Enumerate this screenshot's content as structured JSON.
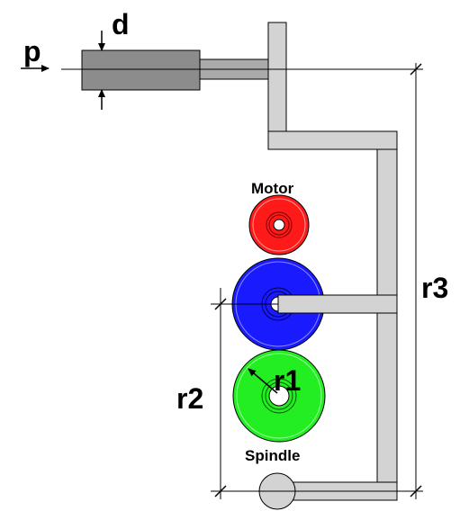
{
  "labels": {
    "p": "p",
    "d": "d",
    "motor": "Motor",
    "spindle": "Spindle",
    "r1": "r1",
    "r2": "r2",
    "r3": "r3"
  },
  "colors": {
    "arm": "#d3d3d3",
    "cylinder": "#8c8c8c",
    "motor_gear": "#ff1a1a",
    "intermediate_gear": "#1a1aff",
    "spindle_gear": "#22ee22",
    "pivot": "#d3d3d3",
    "line": "#000000"
  }
}
